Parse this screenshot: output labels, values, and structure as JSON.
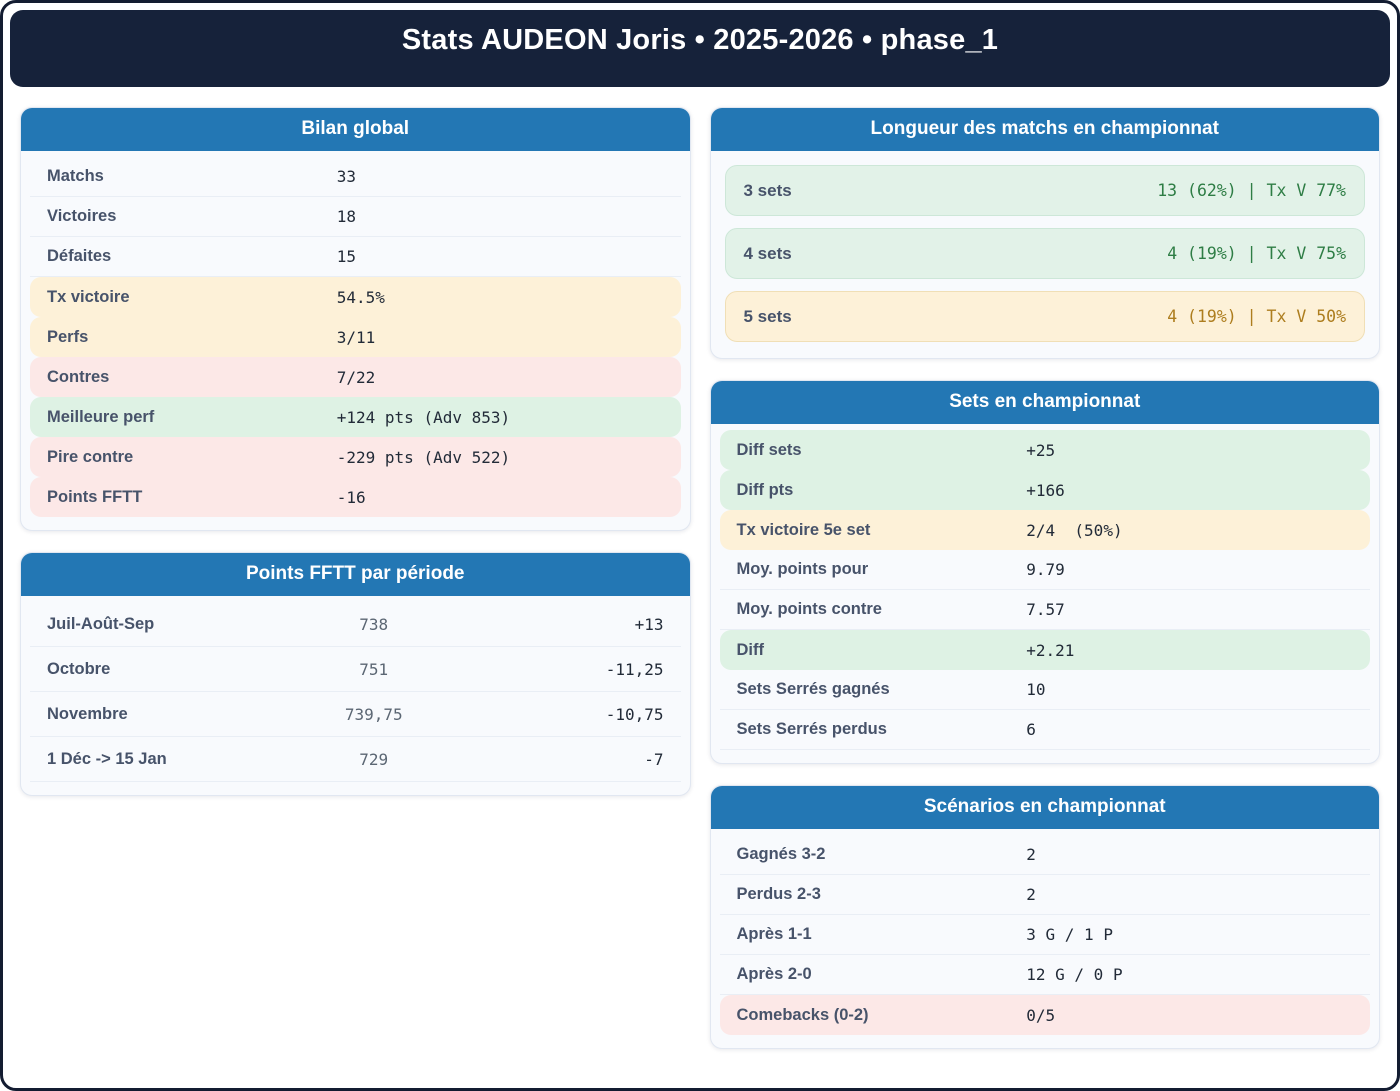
{
  "page": {
    "title": "Stats AUDEON Joris • 2025-2026 • phase_1"
  },
  "colors": {
    "header_navy": "#16223a",
    "card_header_blue": "#2377b4",
    "highlight_green_bg": "#def2e4",
    "highlight_yellow_bg": "#fdf1d8",
    "highlight_red_bg": "#fce8e7",
    "green_text": "#2e7d45",
    "amber_text": "#ad7d1e"
  },
  "cards": {
    "bilan": {
      "title": "Bilan global",
      "rows": [
        {
          "label": "Matchs",
          "value": "33",
          "tone": "plain"
        },
        {
          "label": "Victoires",
          "value": "18",
          "tone": "plain"
        },
        {
          "label": "Défaites",
          "value": "15",
          "tone": "plain"
        },
        {
          "label": "Tx victoire",
          "value": "54.5%",
          "tone": "yellow"
        },
        {
          "label": "Perfs",
          "value": "3/11",
          "tone": "yellow"
        },
        {
          "label": "Contres",
          "value": "7/22",
          "tone": "red"
        },
        {
          "label": "Meilleure perf",
          "value": "+124 pts (Adv 853)",
          "tone": "green"
        },
        {
          "label": "Pire contre",
          "value": "-229 pts (Adv 522)",
          "tone": "red"
        },
        {
          "label": "Points FFTT",
          "value": "-16",
          "tone": "red"
        }
      ]
    },
    "periode": {
      "title": "Points FFTT par période",
      "rows": [
        {
          "label": "Juil-Août-Sep",
          "points": "738",
          "delta": "+13"
        },
        {
          "label": "Octobre",
          "points": "751",
          "delta": "-11,25"
        },
        {
          "label": "Novembre",
          "points": "739,75",
          "delta": "-10,75"
        },
        {
          "label": "1 Déc -> 15 Jan",
          "points": "729",
          "delta": "-7"
        }
      ]
    },
    "longueur": {
      "title": "Longueur des matchs en championnat",
      "rows": [
        {
          "label": "3 sets",
          "value": "13 (62%) | Tx V 77%",
          "tone": "green"
        },
        {
          "label": "4 sets",
          "value": "4 (19%) | Tx V 75%",
          "tone": "green"
        },
        {
          "label": "5 sets",
          "value": "4 (19%) | Tx V 50%",
          "tone": "amber"
        }
      ]
    },
    "sets": {
      "title": "Sets en championnat",
      "rows": [
        {
          "label": "Diff sets",
          "value": "+25",
          "tone": "green"
        },
        {
          "label": "Diff pts",
          "value": "+166",
          "tone": "green"
        },
        {
          "label": "Tx victoire 5e set",
          "value": "2/4  (50%)",
          "tone": "yellow"
        },
        {
          "label": "Moy. points pour",
          "value": "9.79",
          "tone": "plain"
        },
        {
          "label": "Moy. points contre",
          "value": "7.57",
          "tone": "plain"
        },
        {
          "label": "Diff",
          "value": "+2.21",
          "tone": "green"
        },
        {
          "label": "Sets Serrés gagnés",
          "value": "10",
          "tone": "plain"
        },
        {
          "label": "Sets Serrés perdus",
          "value": "6",
          "tone": "plain"
        }
      ]
    },
    "scenarios": {
      "title": "Scénarios en championnat",
      "rows": [
        {
          "label": "Gagnés 3-2",
          "value": "2",
          "tone": "plain"
        },
        {
          "label": "Perdus 2-3",
          "value": "2",
          "tone": "plain"
        },
        {
          "label": "Après 1-1",
          "value": "3 G / 1 P",
          "tone": "plain"
        },
        {
          "label": "Après 2-0",
          "value": "12 G / 0 P",
          "tone": "plain"
        },
        {
          "label": "Comebacks (0-2)",
          "value": "0/5",
          "tone": "red"
        }
      ]
    }
  }
}
